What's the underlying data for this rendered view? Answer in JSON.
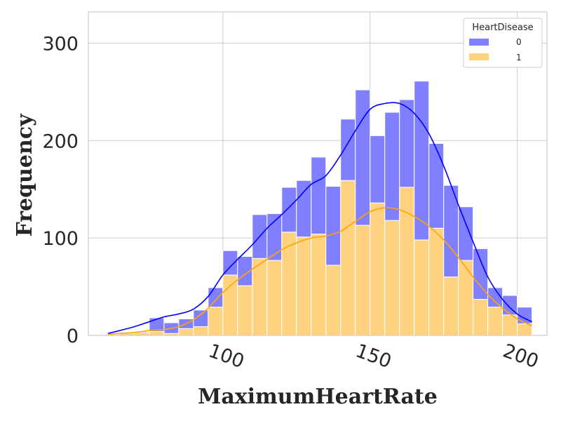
{
  "chart_data": {
    "type": "bar",
    "subtype": "stacked-histogram-with-kde",
    "xlabel": "MaximumHeartRate",
    "ylabel": "Frequency",
    "xlim": [
      54.3,
      210.1
    ],
    "ylim": [
      0,
      332
    ],
    "x_ticks": [
      100,
      150,
      200
    ],
    "y_ticks": [
      0,
      100,
      200,
      300
    ],
    "grid": true,
    "legend": {
      "title": "HeartDisease",
      "placement": "top-right"
    },
    "bin_edges": [
      60,
      65,
      70,
      75,
      80,
      85,
      90,
      95,
      100,
      105,
      110,
      115,
      120,
      125,
      130,
      135,
      140,
      145,
      150,
      155,
      160,
      165,
      170,
      175,
      180,
      185,
      190,
      195,
      200,
      205
    ],
    "series": [
      {
        "name": "0",
        "color": "#0000ff",
        "bar_color": "#8080ff",
        "values": [
          1,
          0,
          1,
          14,
          11,
          10,
          17,
          20,
          25,
          30,
          45,
          48,
          46,
          58,
          79,
          81,
          63,
          139,
          69,
          111,
          90,
          163,
          87,
          94,
          55,
          52,
          20,
          20,
          17
        ]
      },
      {
        "name": "1",
        "color": "#ffa500",
        "bar_color": "#ffd280",
        "values": [
          1,
          2,
          3,
          4,
          2,
          7,
          9,
          29,
          62,
          51,
          79,
          77,
          106,
          101,
          104,
          72,
          159,
          113,
          136,
          118,
          152,
          98,
          110,
          60,
          77,
          37,
          29,
          21,
          12
        ]
      }
    ],
    "kde": [
      {
        "name": "0",
        "x": [
          61,
          65,
          70,
          75,
          80,
          85,
          90,
          95,
          100,
          105,
          110,
          115,
          120,
          125,
          130,
          135,
          140,
          145,
          150,
          155,
          160,
          165,
          170,
          175,
          180,
          185,
          190,
          195,
          200,
          205
        ],
        "y": [
          2,
          5,
          9,
          14,
          19,
          22,
          27,
          40,
          62,
          78,
          93,
          110,
          124,
          139,
          155,
          164,
          185,
          210,
          232,
          238,
          238,
          228,
          207,
          174,
          134,
          96,
          60,
          37,
          22,
          14
        ]
      },
      {
        "name": "1",
        "x": [
          61,
          65,
          70,
          75,
          80,
          85,
          90,
          95,
          100,
          105,
          110,
          115,
          120,
          125,
          130,
          135,
          140,
          145,
          150,
          155,
          160,
          165,
          170,
          175,
          180,
          185,
          190,
          195,
          200,
          205
        ],
        "y": [
          1,
          2,
          3,
          5,
          6,
          9,
          16,
          28,
          44,
          57,
          68,
          78,
          88,
          95,
          100,
          102,
          107,
          117,
          127,
          131,
          129,
          122,
          112,
          98,
          80,
          60,
          42,
          28,
          17,
          10
        ]
      }
    ]
  }
}
